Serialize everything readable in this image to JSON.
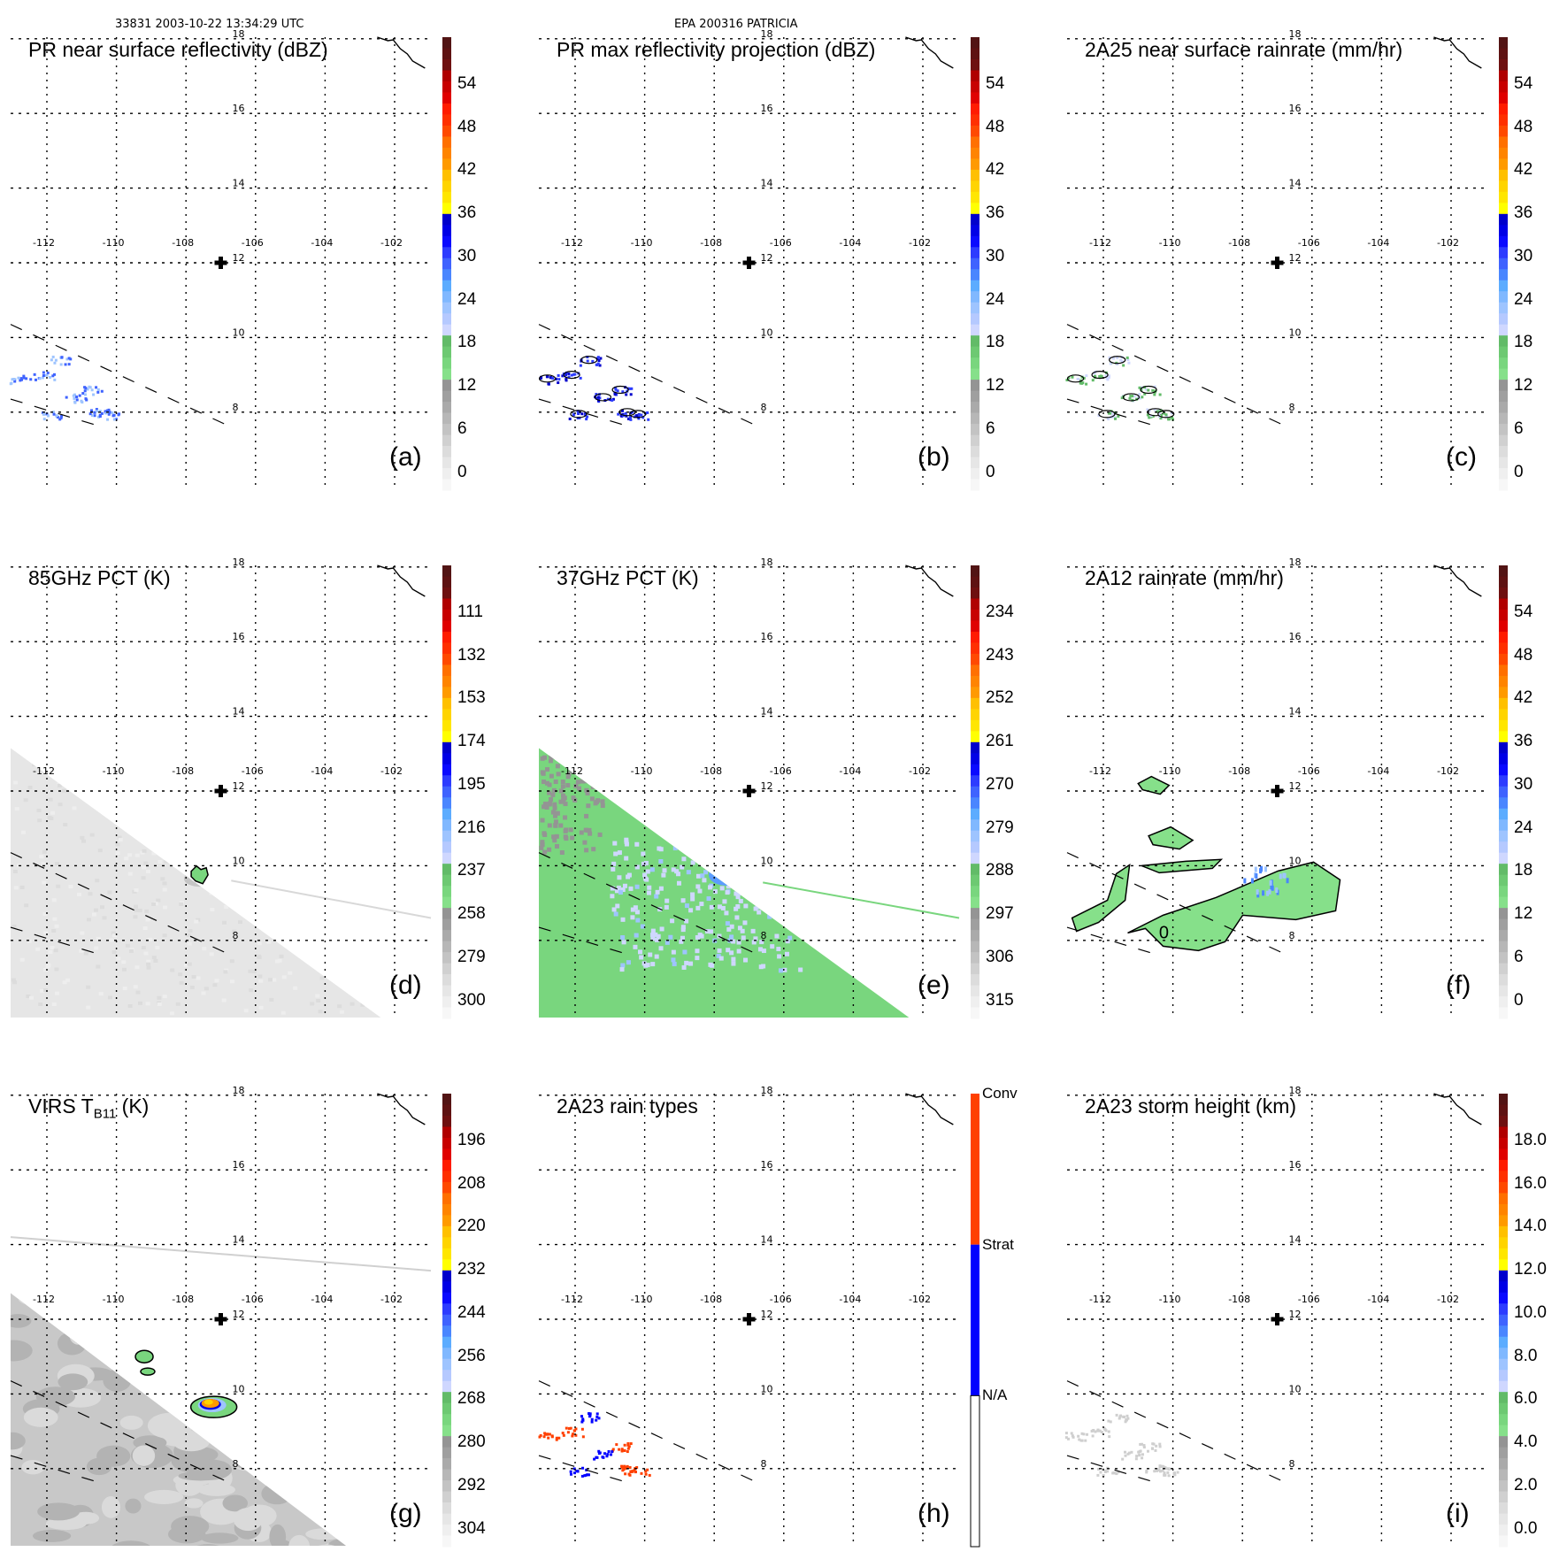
{
  "header": {
    "left": "33831 2003-10-22 13:34:29 UTC",
    "center": "EPA 200316 PATRICIA"
  },
  "map": {
    "lon_ticks": [
      -112,
      -110,
      -108,
      -106,
      -104,
      -102
    ],
    "lat_ticks": [
      8,
      10,
      12,
      14,
      16,
      18
    ],
    "lon_tick_labels": [
      "-112",
      "-110",
      "-108",
      "-106",
      "-104",
      "-102"
    ],
    "lat_tick_labels": [
      "8",
      "10",
      "12",
      "14",
      "16",
      "18"
    ],
    "storm_center": {
      "lon": -107.0,
      "lat": 12.0,
      "marker": "plus-icon"
    },
    "lon_range": [
      -113,
      -101.5
    ],
    "lat_range": [
      6.9,
      18.2
    ]
  },
  "colors": {
    "scale": [
      "#f7f7f7",
      "#efefef",
      "#e6e6e6",
      "#dcdcdc",
      "#d0d0d0",
      "#c3c3c3",
      "#b7b7b7",
      "#aaaaaa",
      "#9f9f9f",
      "#949494",
      "#86e08a",
      "#79d67e",
      "#6dc972",
      "#62bb68",
      "#cfd7ff",
      "#b5c9ff",
      "#9ec4ff",
      "#80b8ff",
      "#5cacff",
      "#4a86ff",
      "#3f63ff",
      "#2d3cff",
      "#0a0aff",
      "#0000e6",
      "#0000cc",
      "#ffff00",
      "#ffe600",
      "#ffd400",
      "#ffc000",
      "#ff9a00",
      "#ff8400",
      "#ff7000",
      "#ff4a00",
      "#ff3000",
      "#ff1c00",
      "#e00000",
      "#c80000",
      "#b00000",
      "#6e1010",
      "#5e1212",
      "#521414"
    ],
    "rain_type_conv": "#ff4000",
    "rain_type_strat": "#0000ff",
    "rain_type_na": "#ffffff"
  },
  "chart_data": [
    {
      "id": "a",
      "type": "heatmap",
      "title": "PR near surface reflectivity (dBZ)",
      "panel_label": "(a)",
      "colorbar": {
        "ticks": [
          "54",
          "48",
          "42",
          "36",
          "30",
          "24",
          "18",
          "12",
          "6",
          "0"
        ],
        "range": [
          0,
          60
        ],
        "unit": "dBZ"
      },
      "field": "scattered 18-35 dBZ echoes near -112 to -110 lon, 8-9.5 lat"
    },
    {
      "id": "b",
      "type": "heatmap",
      "title": "PR max reflectivity projection (dBZ)",
      "panel_label": "(b)",
      "colorbar": {
        "ticks": [
          "54",
          "48",
          "42",
          "36",
          "30",
          "24",
          "18",
          "12",
          "6",
          "0"
        ],
        "range": [
          0,
          60
        ],
        "unit": "dBZ"
      },
      "field": "small contoured cells near -112 to -110 lon, 8-9.5 lat"
    },
    {
      "id": "c",
      "type": "heatmap",
      "title": "2A25 near surface rainrate (mm/hr)",
      "panel_label": "(c)",
      "colorbar": {
        "ticks": [
          "54",
          "48",
          "42",
          "36",
          "30",
          "24",
          "18",
          "12",
          "6",
          "0"
        ],
        "range": [
          0,
          60
        ],
        "unit": "mm/hr"
      },
      "field": "small contoured cells near -112 to -110 lon, 8-9.5 lat"
    },
    {
      "id": "d",
      "type": "heatmap",
      "title": "85GHz PCT (K)",
      "panel_label": "(d)",
      "colorbar": {
        "ticks": [
          "111",
          "132",
          "153",
          "174",
          "195",
          "216",
          "237",
          "258",
          "279",
          "300"
        ],
        "range": [
          300,
          90
        ],
        "unit": "K"
      },
      "field": "light grey swath, small 237 K contour near -107.6 lon, 9.7 lat"
    },
    {
      "id": "e",
      "type": "heatmap",
      "title": "37GHz PCT (K)",
      "panel_label": "(e)",
      "colorbar": {
        "ticks": [
          "234",
          "243",
          "252",
          "261",
          "270",
          "279",
          "288",
          "297",
          "306",
          "315"
        ],
        "range": [
          315,
          225
        ],
        "unit": "K"
      },
      "field": "green swath (~288 K) with blue minimum (~270 K) near -107.6 lon, 9.8 lat"
    },
    {
      "id": "f",
      "type": "heatmap",
      "title": "2A12 rainrate (mm/hr)",
      "panel_label": "(f)",
      "colorbar": {
        "ticks": [
          "54",
          "48",
          "42",
          "36",
          "30",
          "24",
          "18",
          "12",
          "6",
          "0"
        ],
        "range": [
          0,
          60
        ],
        "unit": "mm/hr"
      },
      "field": "light rain bands (0-6 mm/hr) across -113 to -106.5 lon, 7.8-12.3 lat",
      "contour_label": "0"
    },
    {
      "id": "g",
      "type": "heatmap",
      "title": "VIRS T",
      "title_sub": "B11",
      "title_suffix": " (K)",
      "panel_label": "(g)",
      "colorbar": {
        "ticks": [
          "196",
          "208",
          "220",
          "232",
          "244",
          "256",
          "268",
          "280",
          "292",
          "304"
        ],
        "range": [
          304,
          184
        ],
        "unit": "K"
      },
      "field": "grey swath with cold cloud (~220 K) near -107.8 lon, 9.8 lat"
    },
    {
      "id": "h",
      "type": "heatmap",
      "title": "2A23 rain types",
      "panel_label": "(h)",
      "colorbar": {
        "categories": [
          "Conv",
          "Strat",
          "N/A"
        ]
      },
      "field": "mixed convective and stratiform pixels near -112 to -110 lon, 8-9.5 lat"
    },
    {
      "id": "i",
      "type": "heatmap",
      "title": "2A23 storm height (km)",
      "panel_label": "(i)",
      "colorbar": {
        "ticks": [
          "18.0",
          "16.0",
          "14.0",
          "12.0",
          "10.0",
          "8.0",
          "6.0",
          "4.0",
          "2.0",
          "0.0"
        ],
        "range": [
          0,
          20
        ],
        "unit": "km"
      },
      "field": "low storm heights (~2-4 km) near -112 to -110 lon, 8-9.5 lat"
    }
  ]
}
